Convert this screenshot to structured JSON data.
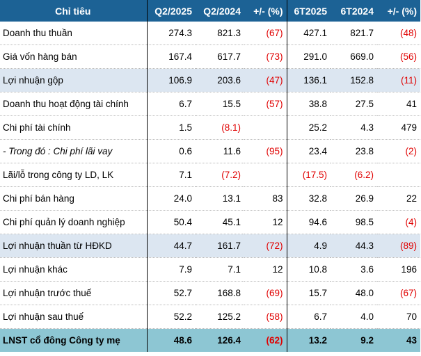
{
  "table": {
    "headers": [
      "Chỉ tiêu",
      "Q2/2025",
      "Q2/2024",
      "+/- (%)",
      "6T2025",
      "6T2024",
      "+/- (%)"
    ],
    "rows": [
      {
        "label": "Doanh thu thuần",
        "cells": [
          "274.3",
          "821.3",
          "(67)",
          "427.1",
          "821.7",
          "(48)"
        ],
        "style": "normal"
      },
      {
        "label": "Giá vốn hàng bán",
        "cells": [
          "167.4",
          "617.7",
          "(73)",
          "291.0",
          "669.0",
          "(56)"
        ],
        "style": "normal"
      },
      {
        "label": "Lợi nhuận gộp",
        "cells": [
          "106.9",
          "203.6",
          "(47)",
          "136.1",
          "152.8",
          "(11)"
        ],
        "style": "highlight"
      },
      {
        "label": "Doanh thu hoạt động tài chính",
        "cells": [
          "6.7",
          "15.5",
          "(57)",
          "38.8",
          "27.5",
          "41"
        ],
        "style": "normal"
      },
      {
        "label": "Chi phí tài chính",
        "cells": [
          "1.5",
          "(8.1)",
          "",
          "25.2",
          "4.3",
          "479"
        ],
        "style": "normal"
      },
      {
        "label": "- Trong đó : Chi phí lãi vay",
        "cells": [
          "0.6",
          "11.6",
          "(95)",
          "23.4",
          "23.8",
          "(2)"
        ],
        "style": "italic"
      },
      {
        "label": "Lãi/lỗ trong công ty LD, LK",
        "cells": [
          "7.1",
          "(7.2)",
          "",
          "(17.5)",
          "(6.2)",
          ""
        ],
        "style": "normal"
      },
      {
        "label": "Chi phí bán hàng",
        "cells": [
          "24.0",
          "13.1",
          "83",
          "32.8",
          "26.9",
          "22"
        ],
        "style": "normal"
      },
      {
        "label": "Chi phí quản lý doanh nghiệp",
        "cells": [
          "50.4",
          "45.1",
          "12",
          "94.6",
          "98.5",
          "(4)"
        ],
        "style": "normal"
      },
      {
        "label": "Lợi nhuận thuần từ HĐKD",
        "cells": [
          "44.7",
          "161.7",
          "(72)",
          "4.9",
          "44.3",
          "(89)"
        ],
        "style": "highlight"
      },
      {
        "label": "Lợi nhuận khác",
        "cells": [
          "7.9",
          "7.1",
          "12",
          "10.8",
          "3.6",
          "196"
        ],
        "style": "normal"
      },
      {
        "label": "Lợi nhuận trước thuế",
        "cells": [
          "52.7",
          "168.8",
          "(69)",
          "15.7",
          "48.0",
          "(67)"
        ],
        "style": "normal"
      },
      {
        "label": "Lợi nhuận sau thuế",
        "cells": [
          "52.2",
          "125.2",
          "(58)",
          "6.7",
          "4.0",
          "70"
        ],
        "style": "normal"
      },
      {
        "label": "LNST cổ đông Công ty mẹ",
        "cells": [
          "48.6",
          "126.4",
          "(62)",
          "13.2",
          "9.2",
          "43"
        ],
        "style": "total"
      }
    ]
  },
  "colors": {
    "header_bg": "#1c6295",
    "highlight_bg": "#dce6f1",
    "total_bg": "#8dc6d3",
    "negative": "#e00000"
  }
}
